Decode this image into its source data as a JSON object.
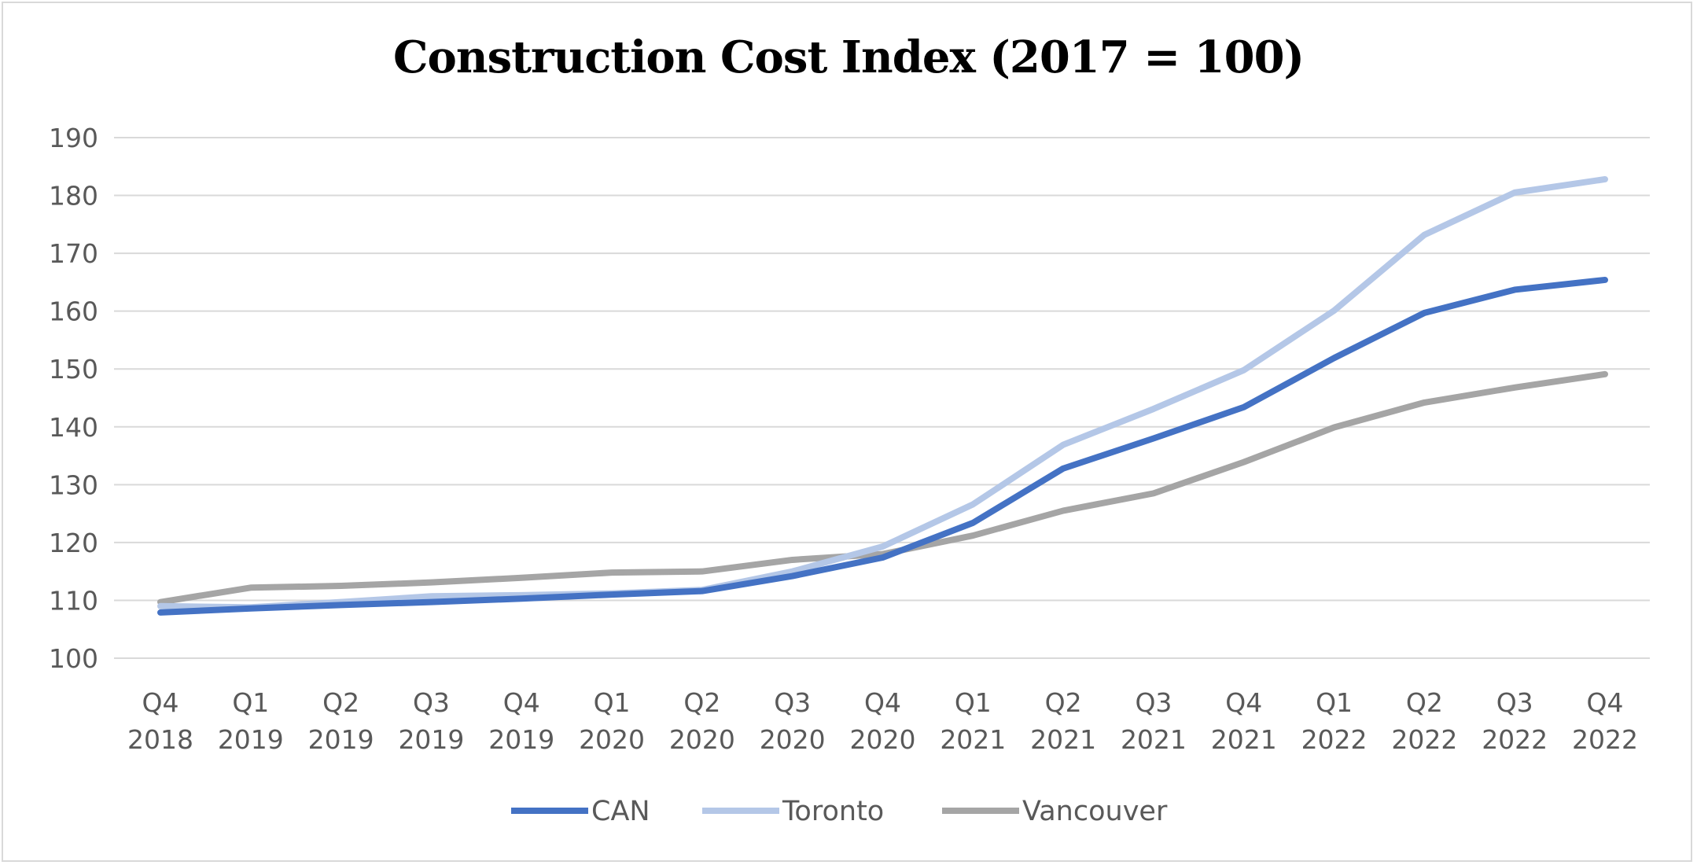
{
  "chart_data": {
    "type": "line",
    "title": "Construction Cost Index (2017 = 100)",
    "xlabel": "",
    "ylabel": "",
    "ylim": [
      100,
      190
    ],
    "yticks": [
      100,
      110,
      120,
      130,
      140,
      150,
      160,
      170,
      180,
      190
    ],
    "grid": true,
    "legend": "bottom",
    "categories": [
      [
        "Q4",
        "2018"
      ],
      [
        "Q1",
        "2019"
      ],
      [
        "Q2",
        "2019"
      ],
      [
        "Q3",
        "2019"
      ],
      [
        "Q4",
        "2019"
      ],
      [
        "Q1",
        "2020"
      ],
      [
        "Q2",
        "2020"
      ],
      [
        "Q3",
        "2020"
      ],
      [
        "Q4",
        "2020"
      ],
      [
        "Q1",
        "2021"
      ],
      [
        "Q2",
        "2021"
      ],
      [
        "Q3",
        "2021"
      ],
      [
        "Q4",
        "2021"
      ],
      [
        "Q1",
        "2022"
      ],
      [
        "Q2",
        "2022"
      ],
      [
        "Q3",
        "2022"
      ],
      [
        "Q4",
        "2022"
      ]
    ],
    "series": [
      {
        "name": "CAN",
        "color": "#4472c4",
        "values": [
          107.9,
          108.6,
          109.2,
          109.7,
          110.3,
          111.0,
          111.6,
          114.2,
          117.4,
          123.4,
          132.8,
          138.0,
          143.4,
          151.9,
          159.7,
          163.7,
          165.4
        ]
      },
      {
        "name": "Toronto",
        "color": "#b4c7e7",
        "values": [
          109.0,
          108.8,
          109.7,
          110.7,
          110.9,
          111.2,
          111.8,
          115.0,
          119.3,
          126.6,
          136.9,
          143.1,
          149.8,
          160.1,
          173.2,
          180.5,
          182.8
        ]
      },
      {
        "name": "Vancouver",
        "color": "#a5a5a5",
        "values": [
          109.7,
          112.2,
          112.5,
          113.1,
          113.9,
          114.8,
          115.0,
          117.0,
          118.0,
          121.2,
          125.5,
          128.5,
          133.9,
          139.9,
          144.2,
          146.8,
          149.1
        ]
      }
    ]
  }
}
